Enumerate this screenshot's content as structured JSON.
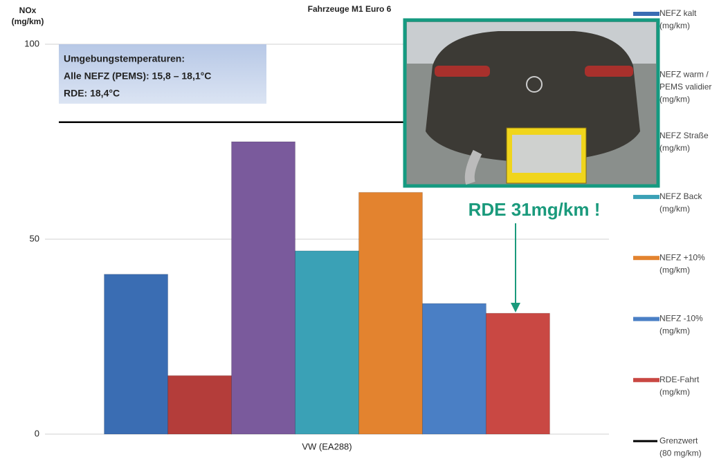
{
  "chart_data": {
    "type": "bar",
    "title": "Fahrzeuge M1 Euro 6",
    "y_label": [
      "NOx",
      "(mg/km)"
    ],
    "categories": [
      "VW (EA288)"
    ],
    "series": [
      {
        "name": [
          "NEFZ kalt",
          "(mg/km)"
        ],
        "color": "#3a6db3",
        "values": [
          41
        ]
      },
      {
        "name": [
          "NEFZ warm /",
          "PEMS validier",
          "(mg/km)"
        ],
        "color": "#b43d3a",
        "values": [
          15
        ]
      },
      {
        "name": [
          "NEFZ Straße",
          "(mg/km)"
        ],
        "color": "#7a5a9c",
        "values": [
          75
        ]
      },
      {
        "name": [
          "NEFZ Back",
          "(mg/km)"
        ],
        "color": "#3aa1b6",
        "values": [
          47
        ]
      },
      {
        "name": [
          "NEFZ +10%",
          "(mg/km)"
        ],
        "color": "#e3832f",
        "values": [
          62
        ]
      },
      {
        "name": [
          "NEFZ -10%",
          "(mg/km)"
        ],
        "color": "#4a7fc5",
        "values": [
          33.5
        ]
      },
      {
        "name": [
          "RDE-Fahrt",
          "(mg/km)"
        ],
        "color": "#c94843",
        "values": [
          31
        ]
      }
    ],
    "limit": {
      "name": [
        "Grenzwert",
        "(80 mg/km)"
      ],
      "color": "#000000",
      "value": 80
    },
    "ylim": [
      0,
      100
    ],
    "yticks": [
      0,
      50,
      100
    ],
    "grid": true,
    "info_box": [
      "Umgebungstemperaturen:",
      "Alle NEFZ (PEMS): 15,8 – 18,1°C",
      "RDE: 18,4°C"
    ],
    "annotation": "RDE 31mg/km !"
  }
}
